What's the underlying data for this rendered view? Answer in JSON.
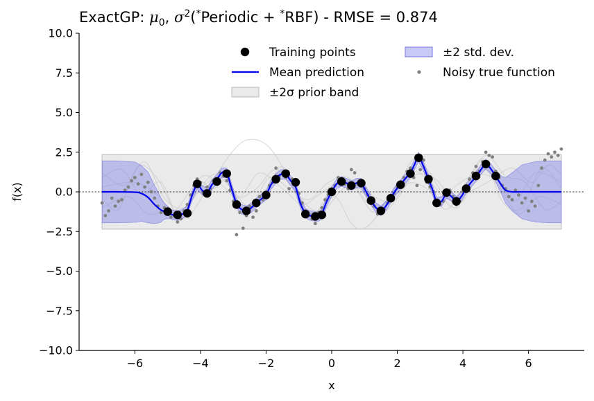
{
  "title": {
    "prefix": "ExactGP: ",
    "mu": "μ",
    "mu_sub": "0",
    "sep": ", ",
    "sigma": "σ",
    "sigma_sup": "2",
    "kernel_open": "(",
    "star1": "*",
    "kernel1": "Periodic + ",
    "star2": "*",
    "kernel2": "RBF) - RMSE = 0.874"
  },
  "colors": {
    "mean": "#0000ee",
    "band": "#7777e6",
    "prior_band": "#d9d9d9",
    "training": "#000000",
    "noisy": "#808080",
    "samples": "#c8c8c8"
  },
  "chart_data": {
    "type": "line",
    "title": "ExactGP: μ0, σ2(*Periodic + *RBF) - RMSE = 0.874",
    "xlabel": "x",
    "ylabel": "f(x)",
    "xlim": [
      -7.7,
      7.7
    ],
    "ylim": [
      -10,
      10
    ],
    "xticks": [
      -6,
      -4,
      -2,
      0,
      2,
      4,
      6
    ],
    "xtick_labels": [
      "−6",
      "−4",
      "−2",
      "0",
      "2",
      "4",
      "6"
    ],
    "yticks": [
      10,
      7.5,
      5,
      2.5,
      0,
      -2.5,
      -5,
      -7.5,
      -10
    ],
    "ytick_labels": [
      "10.0",
      "7.5",
      "5.0",
      "2.5",
      "0.0",
      "−2.5",
      "−5.0",
      "−7.5",
      "−10.0"
    ],
    "legend_position": "top-right",
    "legend": [
      {
        "key": "training",
        "label": "Training points"
      },
      {
        "key": "mean",
        "label": "Mean prediction"
      },
      {
        "key": "prior",
        "label": "±2σ prior band"
      },
      {
        "key": "band",
        "label": "±2 std. dev."
      },
      {
        "key": "noisy",
        "label": "Noisy true function"
      }
    ],
    "prior_band": {
      "x": [
        -7,
        7
      ],
      "lower": -2.35,
      "upper": 2.35
    },
    "training_points": {
      "x": [
        -5.0,
        -4.7,
        -4.4,
        -4.1,
        -3.8,
        -3.5,
        -3.2,
        -2.9,
        -2.6,
        -2.3,
        -2.0,
        -1.7,
        -1.4,
        -1.1,
        -0.8,
        -0.5,
        -0.3,
        0.0,
        0.3,
        0.6,
        0.9,
        1.2,
        1.5,
        1.8,
        2.1,
        2.4,
        2.65,
        2.95,
        3.2,
        3.5,
        3.8,
        4.1,
        4.4,
        4.7,
        5.0
      ],
      "y": [
        -1.25,
        -1.45,
        -1.35,
        0.5,
        -0.1,
        0.65,
        1.15,
        -0.8,
        -1.2,
        -0.7,
        -0.2,
        0.8,
        1.15,
        0.6,
        -1.4,
        -1.55,
        -1.45,
        0.0,
        0.65,
        0.4,
        0.55,
        -0.55,
        -1.2,
        -0.4,
        0.45,
        1.15,
        2.15,
        0.8,
        -0.7,
        -0.05,
        -0.6,
        0.2,
        1.0,
        1.75,
        1.0
      ]
    },
    "mean_prediction": {
      "x": [
        -7.0,
        -6.5,
        -6.0,
        -5.8,
        -5.6,
        -5.4,
        -5.2,
        -5.0,
        -4.85,
        -4.7,
        -4.55,
        -4.4,
        -4.25,
        -4.1,
        -3.95,
        -3.8,
        -3.65,
        -3.5,
        -3.35,
        -3.2,
        -3.05,
        -2.9,
        -2.75,
        -2.6,
        -2.45,
        -2.3,
        -2.15,
        -2.0,
        -1.85,
        -1.7,
        -1.55,
        -1.4,
        -1.25,
        -1.1,
        -0.95,
        -0.8,
        -0.65,
        -0.5,
        -0.4,
        -0.3,
        -0.15,
        0.0,
        0.15,
        0.3,
        0.45,
        0.6,
        0.75,
        0.9,
        1.05,
        1.2,
        1.35,
        1.5,
        1.65,
        1.8,
        1.95,
        2.1,
        2.25,
        2.4,
        2.52,
        2.65,
        2.8,
        2.95,
        3.08,
        3.2,
        3.35,
        3.5,
        3.65,
        3.8,
        3.95,
        4.1,
        4.25,
        4.4,
        4.55,
        4.7,
        4.85,
        5.0,
        5.15,
        5.3,
        5.5,
        5.7,
        6.0,
        6.5,
        7.0
      ],
      "y": [
        0.0,
        0.0,
        -0.02,
        -0.1,
        -0.35,
        -0.8,
        -1.15,
        -1.3,
        -1.45,
        -1.5,
        -1.4,
        -1.15,
        -0.2,
        0.45,
        0.1,
        -0.05,
        0.45,
        0.8,
        1.2,
        1.2,
        0.2,
        -0.75,
        -1.1,
        -1.2,
        -1.0,
        -0.7,
        -0.45,
        -0.2,
        0.45,
        0.85,
        1.1,
        1.1,
        0.7,
        0.3,
        -0.75,
        -1.35,
        -1.5,
        -1.55,
        -1.55,
        -1.4,
        -0.6,
        0.0,
        0.5,
        0.65,
        0.55,
        0.4,
        0.55,
        0.55,
        0.0,
        -0.55,
        -1.0,
        -1.2,
        -0.9,
        -0.4,
        0.1,
        0.45,
        0.85,
        1.2,
        1.7,
        2.2,
        1.6,
        0.8,
        0.1,
        -0.65,
        -0.6,
        -0.1,
        -0.3,
        -0.6,
        -0.3,
        0.2,
        0.6,
        0.95,
        1.4,
        1.75,
        1.45,
        1.0,
        0.5,
        0.1,
        0.0,
        0.0,
        0.0,
        0.0,
        0.0
      ]
    },
    "std_band": {
      "x": [
        -7.0,
        -6.5,
        -6.0,
        -5.6,
        -5.3,
        -5.1,
        -4.9,
        -4.6,
        -4.3,
        -4.0,
        -3.7,
        -3.4,
        -3.0,
        -2.7,
        -2.4,
        -2.1,
        -1.8,
        -1.5,
        -1.2,
        -0.9,
        -0.6,
        -0.3,
        0.0,
        0.3,
        0.6,
        0.9,
        1.2,
        1.5,
        1.8,
        2.1,
        2.4,
        2.7,
        3.0,
        3.3,
        3.6,
        3.9,
        4.2,
        4.5,
        4.8,
        5.0,
        5.2,
        5.5,
        5.8,
        6.2,
        6.6,
        7.0
      ],
      "half_width": [
        1.95,
        1.95,
        1.9,
        1.6,
        1.0,
        0.5,
        0.3,
        0.3,
        0.3,
        0.3,
        0.3,
        0.3,
        0.3,
        0.3,
        0.3,
        0.3,
        0.3,
        0.3,
        0.3,
        0.3,
        0.3,
        0.3,
        0.3,
        0.3,
        0.3,
        0.3,
        0.3,
        0.3,
        0.3,
        0.3,
        0.3,
        0.3,
        0.3,
        0.3,
        0.3,
        0.3,
        0.3,
        0.3,
        0.3,
        0.35,
        0.6,
        1.2,
        1.7,
        1.9,
        1.95,
        1.95
      ]
    },
    "noisy_true_function": {
      "x": [
        -7.0,
        -6.9,
        -6.8,
        -6.7,
        -6.6,
        -6.5,
        -6.4,
        -6.3,
        -6.2,
        -6.1,
        -6.0,
        -5.9,
        -5.8,
        -5.7,
        -5.6,
        -5.5,
        -5.4,
        -5.3,
        -5.2,
        -5.1,
        -5.0,
        -4.9,
        -4.8,
        -4.7,
        -4.6,
        -4.5,
        -4.4,
        -4.3,
        -4.2,
        -4.1,
        -4.0,
        -3.9,
        -3.8,
        -3.7,
        -3.6,
        -3.5,
        -3.4,
        -3.3,
        -3.2,
        -3.1,
        -3.0,
        -2.9,
        -2.8,
        -2.7,
        -2.6,
        -2.5,
        -2.4,
        -2.3,
        -2.2,
        -2.1,
        -2.0,
        -1.9,
        -1.8,
        -1.7,
        -1.6,
        -1.5,
        -1.4,
        -1.3,
        -1.2,
        -1.1,
        -1.0,
        -0.9,
        -0.8,
        -0.7,
        -0.6,
        -0.5,
        -0.4,
        -0.3,
        -0.2,
        -0.1,
        0.0,
        0.1,
        0.2,
        0.3,
        0.4,
        0.5,
        0.6,
        0.7,
        0.8,
        0.9,
        1.0,
        1.1,
        1.2,
        1.3,
        1.4,
        1.5,
        1.6,
        1.7,
        1.8,
        1.9,
        2.0,
        2.1,
        2.2,
        2.3,
        2.4,
        2.5,
        2.6,
        2.7,
        2.8,
        2.9,
        3.0,
        3.1,
        3.2,
        3.3,
        3.4,
        3.5,
        3.6,
        3.7,
        3.8,
        3.9,
        4.0,
        4.1,
        4.2,
        4.3,
        4.4,
        4.5,
        4.6,
        4.7,
        4.8,
        4.9,
        5.0,
        5.1,
        5.2,
        5.3,
        5.4,
        5.5,
        5.6,
        5.7,
        5.8,
        5.9,
        6.0,
        6.1,
        6.2,
        6.3,
        6.4,
        6.5,
        6.6,
        6.7,
        6.8,
        6.9,
        7.0
      ],
      "y": [
        -0.7,
        -1.5,
        -1.2,
        -0.4,
        -0.9,
        -0.6,
        -0.5,
        0.1,
        0.3,
        0.7,
        0.9,
        0.5,
        1.1,
        0.3,
        0.6,
        0.0,
        -0.4,
        -0.9,
        -1.3,
        -1.0,
        -1.2,
        -1.6,
        -1.5,
        -1.9,
        -1.7,
        -1.2,
        -0.8,
        -0.2,
        0.4,
        0.8,
        0.6,
        -0.1,
        0.3,
        0.2,
        0.7,
        0.8,
        1.2,
        1.0,
        0.7,
        0.1,
        -0.6,
        -2.7,
        -1.3,
        -2.3,
        -1.5,
        -0.9,
        -1.6,
        -1.2,
        -0.3,
        -0.5,
        -0.1,
        0.4,
        0.6,
        1.5,
        1.0,
        1.2,
        0.9,
        0.2,
        0.8,
        0.5,
        -0.1,
        -0.7,
        -1.2,
        -1.5,
        -1.7,
        -2.0,
        -1.3,
        -1.0,
        -0.5,
        -0.2,
        0.2,
        0.4,
        0.9,
        0.8,
        0.5,
        0.2,
        1.4,
        1.2,
        0.5,
        0.6,
        0.2,
        -0.2,
        -0.6,
        -0.9,
        -1.4,
        -1.3,
        -1.1,
        -0.7,
        -0.3,
        -0.1,
        0.3,
        0.6,
        0.9,
        1.3,
        1.5,
        0.9,
        0.4,
        1.4,
        2.0,
        0.6,
        0.3,
        0.0,
        -0.5,
        -0.8,
        -0.6,
        -0.2,
        0.1,
        -0.3,
        -0.8,
        -0.6,
        0.0,
        0.4,
        0.8,
        1.2,
        1.6,
        1.3,
        1.9,
        2.5,
        2.3,
        2.2,
        1.3,
        0.9,
        0.4,
        0.2,
        -0.3,
        -0.5,
        0.1,
        -0.2,
        -0.7,
        -0.4,
        -1.2,
        -0.6,
        -0.9,
        0.4,
        1.5,
        2.0,
        2.4,
        2.2,
        2.5,
        2.3,
        2.7
      ]
    },
    "posterior_samples": [
      {
        "x": [
          -7.0,
          -6.0,
          -5.3,
          -4.8,
          -4.1,
          -3.6,
          -3.2,
          -2.8,
          -2.2,
          -1.5,
          -0.9,
          -0.4,
          0.2,
          0.8,
          1.4,
          2.0,
          2.6,
          3.2,
          3.8,
          4.4,
          5.0,
          5.6,
          6.2,
          7.0
        ],
        "y": [
          0.3,
          0.6,
          -0.2,
          -1.2,
          0.6,
          0.2,
          0.8,
          -0.3,
          1.2,
          0.2,
          -0.8,
          -0.2,
          0.6,
          0.3,
          -1.0,
          0.4,
          2.1,
          -0.6,
          0.4,
          1.1,
          0.8,
          -0.6,
          1.2,
          0.6
        ]
      },
      {
        "x": [
          -7.0,
          -6.2,
          -5.6,
          -5.0,
          -4.4,
          -3.8,
          -3.0,
          -2.5,
          -1.9,
          -1.2,
          -0.6,
          0.0,
          0.6,
          1.3,
          1.9,
          2.5,
          3.1,
          3.8,
          4.5,
          5.1,
          5.7,
          6.3,
          7.0
        ],
        "y": [
          -1.0,
          -0.3,
          -1.4,
          -1.2,
          -1.6,
          0.2,
          2.6,
          3.3,
          2.8,
          0.5,
          -1.6,
          0.3,
          0.5,
          -1.3,
          0.2,
          1.3,
          0.4,
          -1.0,
          1.5,
          0.3,
          -1.4,
          -0.3,
          -0.8
        ]
      },
      {
        "x": [
          -7.0,
          -6.3,
          -5.7,
          -5.1,
          -4.5,
          -3.9,
          -3.3,
          -2.7,
          -2.1,
          -1.5,
          -0.9,
          -0.3,
          0.2,
          0.7,
          1.3,
          1.9,
          2.5,
          3.1,
          3.7,
          4.3,
          4.9,
          5.5,
          6.1,
          6.6,
          7.0
        ],
        "y": [
          1.2,
          0.4,
          1.9,
          -0.4,
          -1.0,
          0.4,
          0.9,
          -1.1,
          -0.4,
          1.6,
          -1.0,
          -1.3,
          -0.1,
          0.6,
          -0.3,
          -0.6,
          1.0,
          0.9,
          -0.3,
          0.1,
          0.8,
          1.5,
          0.6,
          1.7,
          1.1
        ]
      },
      {
        "x": [
          -7.0,
          -6.4,
          -5.8,
          -5.2,
          -4.6,
          -4.0,
          -3.4,
          -2.9,
          -2.3,
          -1.7,
          -1.1,
          -0.5,
          0.1,
          0.6,
          1.0,
          1.6,
          2.2,
          2.8,
          3.4,
          4.0,
          4.6,
          5.2,
          5.8,
          6.4,
          7.0
        ],
        "y": [
          0.9,
          1.4,
          -0.2,
          0.6,
          -1.8,
          0.9,
          0.5,
          -0.4,
          0.2,
          1.4,
          0.0,
          -1.2,
          -0.3,
          -2.0,
          -2.3,
          -1.0,
          0.7,
          1.6,
          -0.1,
          -0.6,
          2.1,
          -0.6,
          -1.0,
          1.5,
          0.2
        ]
      },
      {
        "x": [
          -7.0,
          -6.5,
          -5.9,
          -5.3,
          -4.7,
          -4.2,
          -3.6,
          -3.1,
          -2.5,
          -1.9,
          -1.3,
          -0.7,
          -0.1,
          0.5,
          1.1,
          1.7,
          2.3,
          2.9,
          3.5,
          4.1,
          4.7,
          5.3,
          5.9,
          6.5,
          7.0
        ],
        "y": [
          -0.4,
          -1.1,
          1.6,
          0.8,
          -1.4,
          -0.3,
          1.1,
          0.3,
          -0.9,
          0.9,
          0.2,
          -0.5,
          0.6,
          0.9,
          -0.7,
          -1.1,
          0.5,
          0.2,
          -1.1,
          0.6,
          2.3,
          1.0,
          0.6,
          -1.1,
          -0.6
        ]
      }
    ]
  }
}
